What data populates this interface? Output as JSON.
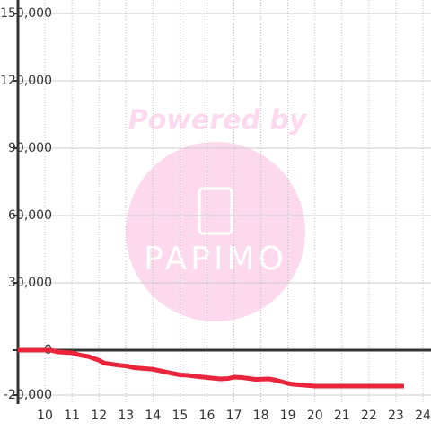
{
  "chart_data": {
    "type": "line",
    "watermark": {
      "top": "Powered by",
      "bottom": "PAPIMO"
    },
    "x": [
      9,
      10.2,
      10.5,
      11,
      11.3,
      11.6,
      12,
      12.2,
      12.8,
      13,
      13.3,
      14,
      14.5,
      15,
      15.3,
      15.7,
      16,
      16.5,
      16.8,
      17,
      17.3,
      17.8,
      18.3,
      18.6,
      19,
      19.2,
      19.8,
      20,
      21,
      22,
      23.3
    ],
    "series": [
      {
        "color": "#e8253a",
        "values": [
          0,
          0,
          -800,
          -1200,
          -2200,
          -2800,
          -4500,
          -5800,
          -6800,
          -7000,
          -7800,
          -8500,
          -9800,
          -11000,
          -11200,
          -11800,
          -12200,
          -12800,
          -12600,
          -12000,
          -12200,
          -13000,
          -12800,
          -13500,
          -14800,
          -15200,
          -15800,
          -16000,
          -16000,
          -16000,
          -16000
        ]
      }
    ],
    "xlim": [
      9,
      24.3
    ],
    "ylim": [
      -24000,
      156000
    ],
    "xticks": [
      10,
      11,
      12,
      13,
      14,
      15,
      16,
      17,
      18,
      19,
      20,
      21,
      22,
      23,
      24
    ],
    "yticks": [
      {
        "value": -20000,
        "label": "-20,000"
      },
      0,
      {
        "value": 30000,
        "label": "30,000"
      },
      {
        "value": 60000,
        "label": "60,000"
      },
      {
        "value": 90000,
        "label": "90,000"
      },
      {
        "value": 120000,
        "label": "120,000"
      },
      {
        "value": 150000,
        "label": "150,000"
      }
    ],
    "grid": true
  }
}
